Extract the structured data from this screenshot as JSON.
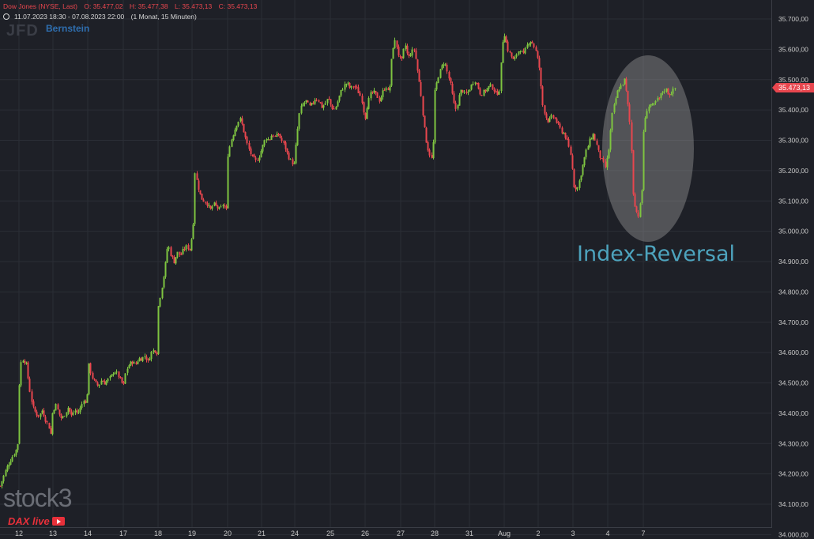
{
  "header": {
    "symbol_line": "Dow Jones (NYSE, Last)",
    "ohlc": {
      "open": "O: 35.477,02",
      "high": "H: 35.477,38",
      "low": "L: 35.473,13",
      "close": "C: 35.473,13"
    },
    "range": "11.07.2023 18:30 - 07.08.2023 22:00",
    "interval": "(1 Monat, 15 Minuten)"
  },
  "watermarks": {
    "logo_left": "JFD",
    "logo_brand": "Bernstein",
    "stock3": "stock3"
  },
  "badge": {
    "label": "DAX live"
  },
  "annotation": {
    "label": "Index-Reversal"
  },
  "colors": {
    "up": "#7ec440",
    "down": "#e8464e",
    "background": "#1e2027",
    "grid": "#2b2e36",
    "price_tag": "#e8464e",
    "annotation_text": "#4da3bd"
  },
  "chart_data": {
    "type": "candlestick",
    "title": "Dow Jones (NYSE, Last)",
    "timeframe": "15 Minuten",
    "ylim": [
      34000,
      35750
    ],
    "y_ticks": [
      "34.000,00",
      "34.100,00",
      "34.200,00",
      "34.300,00",
      "34.400,00",
      "34.500,00",
      "34.600,00",
      "34.700,00",
      "34.800,00",
      "34.900,00",
      "35.000,00",
      "35.100,00",
      "35.200,00",
      "35.300,00",
      "35.400,00",
      "35.500,00",
      "35.600,00",
      "35.700,00"
    ],
    "x_ticks": [
      "12",
      "13",
      "14",
      "17",
      "18",
      "19",
      "20",
      "21",
      "24",
      "25",
      "26",
      "27",
      "28",
      "31",
      "Aug",
      "2",
      "3",
      "4",
      "7"
    ],
    "last_price": 35473.13,
    "last_price_label": "35.473,13",
    "path": [
      [
        0,
        34160
      ],
      [
        4,
        34190
      ],
      [
        8,
        34220
      ],
      [
        12,
        34240
      ],
      [
        16,
        34260
      ],
      [
        20,
        34280
      ],
      [
        22,
        34300
      ],
      [
        23,
        34400
      ],
      [
        25,
        34560
      ],
      [
        29,
        34580
      ],
      [
        33,
        34560
      ],
      [
        37,
        34480
      ],
      [
        41,
        34420
      ],
      [
        45,
        34400
      ],
      [
        49,
        34390
      ],
      [
        53,
        34410
      ],
      [
        57,
        34380
      ],
      [
        61,
        34360
      ],
      [
        64,
        34330
      ],
      [
        66,
        34400
      ],
      [
        70,
        34430
      ],
      [
        74,
        34400
      ],
      [
        78,
        34380
      ],
      [
        82,
        34400
      ],
      [
        86,
        34420
      ],
      [
        90,
        34390
      ],
      [
        94,
        34410
      ],
      [
        98,
        34400
      ],
      [
        102,
        34420
      ],
      [
        106,
        34450
      ],
      [
        109,
        34420
      ],
      [
        112,
        34560
      ],
      [
        116,
        34520
      ],
      [
        120,
        34500
      ],
      [
        124,
        34490
      ],
      [
        128,
        34510
      ],
      [
        132,
        34500
      ],
      [
        136,
        34510
      ],
      [
        140,
        34520
      ],
      [
        144,
        34540
      ],
      [
        148,
        34530
      ],
      [
        152,
        34510
      ],
      [
        156,
        34490
      ],
      [
        159,
        34540
      ],
      [
        163,
        34560
      ],
      [
        167,
        34570
      ],
      [
        171,
        34560
      ],
      [
        175,
        34580
      ],
      [
        179,
        34580
      ],
      [
        183,
        34590
      ],
      [
        187,
        34570
      ],
      [
        191,
        34600
      ],
      [
        195,
        34610
      ],
      [
        198,
        34600
      ],
      [
        200,
        34750
      ],
      [
        204,
        34810
      ],
      [
        208,
        34870
      ],
      [
        212,
        34960
      ],
      [
        216,
        34920
      ],
      [
        220,
        34900
      ],
      [
        224,
        34930
      ],
      [
        228,
        34920
      ],
      [
        232,
        34940
      ],
      [
        236,
        34950
      ],
      [
        240,
        34940
      ],
      [
        244,
        35010
      ],
      [
        246,
        35200
      ],
      [
        250,
        35150
      ],
      [
        254,
        35110
      ],
      [
        258,
        35100
      ],
      [
        262,
        35090
      ],
      [
        266,
        35070
      ],
      [
        270,
        35090
      ],
      [
        274,
        35080
      ],
      [
        278,
        35070
      ],
      [
        282,
        35090
      ],
      [
        286,
        35070
      ],
      [
        288,
        35250
      ],
      [
        292,
        35300
      ],
      [
        296,
        35330
      ],
      [
        300,
        35360
      ],
      [
        304,
        35370
      ],
      [
        308,
        35330
      ],
      [
        312,
        35290
      ],
      [
        316,
        35260
      ],
      [
        320,
        35240
      ],
      [
        324,
        35230
      ],
      [
        328,
        35250
      ],
      [
        332,
        35280
      ],
      [
        336,
        35310
      ],
      [
        340,
        35300
      ],
      [
        344,
        35320
      ],
      [
        348,
        35310
      ],
      [
        352,
        35320
      ],
      [
        356,
        35300
      ],
      [
        360,
        35280
      ],
      [
        364,
        35250
      ],
      [
        368,
        35230
      ],
      [
        372,
        35220
      ],
      [
        375,
        35310
      ],
      [
        379,
        35400
      ],
      [
        383,
        35420
      ],
      [
        387,
        35430
      ],
      [
        391,
        35410
      ],
      [
        395,
        35420
      ],
      [
        399,
        35440
      ],
      [
        403,
        35430
      ],
      [
        407,
        35410
      ],
      [
        411,
        35420
      ],
      [
        415,
        35440
      ],
      [
        419,
        35410
      ],
      [
        423,
        35400
      ],
      [
        427,
        35430
      ],
      [
        431,
        35460
      ],
      [
        435,
        35480
      ],
      [
        439,
        35490
      ],
      [
        443,
        35470
      ],
      [
        447,
        35480
      ],
      [
        451,
        35470
      ],
      [
        455,
        35450
      ],
      [
        459,
        35420
      ],
      [
        461,
        35360
      ],
      [
        464,
        35410
      ],
      [
        468,
        35450
      ],
      [
        472,
        35460
      ],
      [
        476,
        35450
      ],
      [
        480,
        35430
      ],
      [
        484,
        35460
      ],
      [
        488,
        35480
      ],
      [
        492,
        35450
      ],
      [
        496,
        35600
      ],
      [
        500,
        35630
      ],
      [
        504,
        35580
      ],
      [
        508,
        35560
      ],
      [
        512,
        35620
      ],
      [
        516,
        35570
      ],
      [
        520,
        35590
      ],
      [
        524,
        35600
      ],
      [
        528,
        35530
      ],
      [
        532,
        35460
      ],
      [
        536,
        35350
      ],
      [
        540,
        35280
      ],
      [
        544,
        35250
      ],
      [
        547,
        35230
      ],
      [
        550,
        35460
      ],
      [
        554,
        35510
      ],
      [
        558,
        35540
      ],
      [
        562,
        35560
      ],
      [
        566,
        35520
      ],
      [
        570,
        35480
      ],
      [
        574,
        35420
      ],
      [
        577,
        35400
      ],
      [
        580,
        35440
      ],
      [
        584,
        35470
      ],
      [
        588,
        35450
      ],
      [
        592,
        35460
      ],
      [
        596,
        35480
      ],
      [
        600,
        35500
      ],
      [
        604,
        35480
      ],
      [
        608,
        35450
      ],
      [
        612,
        35460
      ],
      [
        616,
        35470
      ],
      [
        620,
        35480
      ],
      [
        624,
        35470
      ],
      [
        628,
        35450
      ],
      [
        632,
        35470
      ],
      [
        635,
        35620
      ],
      [
        638,
        35650
      ],
      [
        642,
        35600
      ],
      [
        646,
        35580
      ],
      [
        650,
        35560
      ],
      [
        654,
        35590
      ],
      [
        658,
        35600
      ],
      [
        662,
        35580
      ],
      [
        666,
        35610
      ],
      [
        670,
        35630
      ],
      [
        674,
        35620
      ],
      [
        678,
        35590
      ],
      [
        682,
        35540
      ],
      [
        686,
        35420
      ],
      [
        690,
        35380
      ],
      [
        694,
        35360
      ],
      [
        698,
        35380
      ],
      [
        702,
        35370
      ],
      [
        706,
        35350
      ],
      [
        710,
        35330
      ],
      [
        714,
        35320
      ],
      [
        718,
        35290
      ],
      [
        722,
        35250
      ],
      [
        726,
        35150
      ],
      [
        730,
        35140
      ],
      [
        734,
        35180
      ],
      [
        738,
        35230
      ],
      [
        742,
        35270
      ],
      [
        746,
        35300
      ],
      [
        750,
        35320
      ],
      [
        754,
        35290
      ],
      [
        758,
        35250
      ],
      [
        762,
        35230
      ],
      [
        766,
        35210
      ],
      [
        770,
        35270
      ],
      [
        774,
        35380
      ],
      [
        778,
        35430
      ],
      [
        782,
        35470
      ],
      [
        786,
        35480
      ],
      [
        790,
        35500
      ],
      [
        794,
        35420
      ],
      [
        798,
        35320
      ],
      [
        800,
        35140
      ],
      [
        804,
        35070
      ],
      [
        808,
        35050
      ],
      [
        812,
        35140
      ],
      [
        814,
        35330
      ],
      [
        818,
        35400
      ],
      [
        822,
        35420
      ],
      [
        826,
        35410
      ],
      [
        830,
        35430
      ],
      [
        834,
        35440
      ],
      [
        838,
        35460
      ],
      [
        842,
        35470
      ],
      [
        846,
        35450
      ],
      [
        850,
        35460
      ],
      [
        854,
        35473
      ]
    ]
  }
}
